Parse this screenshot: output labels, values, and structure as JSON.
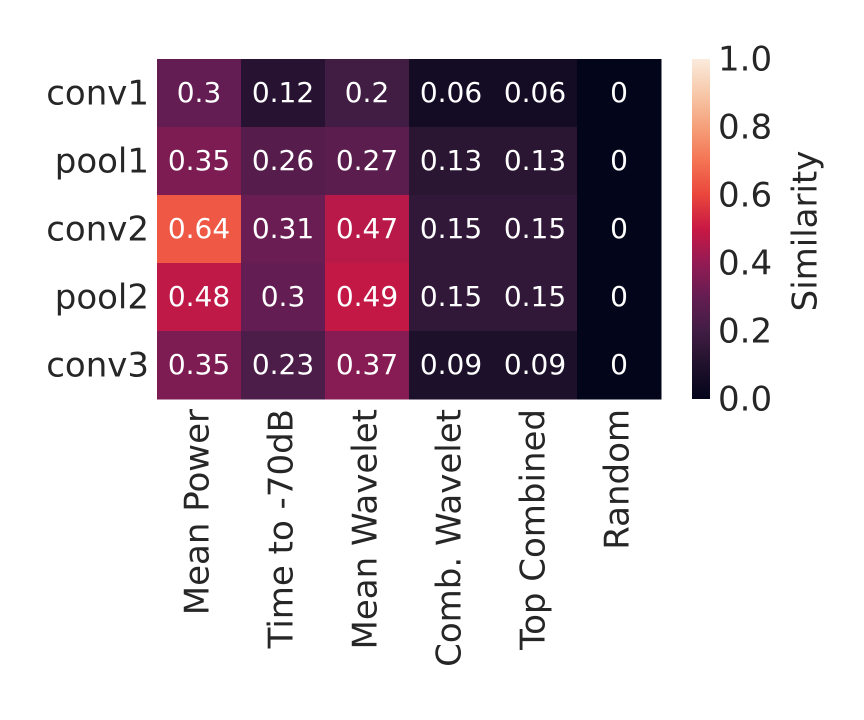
{
  "chart_data": {
    "type": "heatmap",
    "rows": [
      "conv1",
      "pool1",
      "conv2",
      "pool2",
      "conv3"
    ],
    "columns": [
      "Mean Power",
      "Time to -70dB",
      "Mean Wavelet",
      "Comb. Wavelet",
      "Top Combined",
      "Random"
    ],
    "values": [
      [
        0.3,
        0.12,
        0.2,
        0.06,
        0.06,
        0
      ],
      [
        0.35,
        0.26,
        0.27,
        0.13,
        0.13,
        0
      ],
      [
        0.64,
        0.31,
        0.47,
        0.15,
        0.15,
        0
      ],
      [
        0.48,
        0.3,
        0.49,
        0.15,
        0.15,
        0
      ],
      [
        0.35,
        0.23,
        0.37,
        0.09,
        0.09,
        0
      ]
    ],
    "cell_labels": [
      [
        "0.3",
        "0.12",
        "0.2",
        "0.06",
        "0.06",
        "0"
      ],
      [
        "0.35",
        "0.26",
        "0.27",
        "0.13",
        "0.13",
        "0"
      ],
      [
        "0.64",
        "0.31",
        "0.47",
        "0.15",
        "0.15",
        "0"
      ],
      [
        "0.48",
        "0.3",
        "0.49",
        "0.15",
        "0.15",
        "0"
      ],
      [
        "0.35",
        "0.23",
        "0.37",
        "0.09",
        "0.09",
        "0"
      ]
    ],
    "colorbar": {
      "label": "Similarity",
      "range": [
        0.0,
        1.0
      ],
      "ticks": [
        "0.0",
        "0.2",
        "0.4",
        "0.6",
        "0.8",
        "1.0"
      ]
    },
    "colormap": "rocket",
    "title": "",
    "xlabel": "",
    "ylabel": ""
  }
}
